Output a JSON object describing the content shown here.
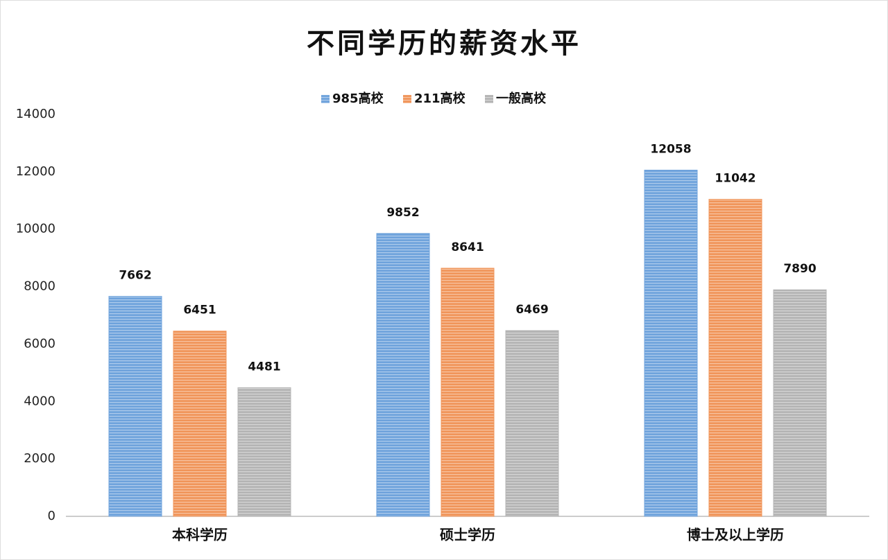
{
  "chart_data": {
    "type": "bar",
    "title": "不同学历的薪资水平",
    "categories": [
      "本科学历",
      "硕士学历",
      "博士及以上学历"
    ],
    "series": [
      {
        "name": "985高校",
        "color": "#6fa3dc",
        "values": [
          7662,
          9852,
          12058
        ]
      },
      {
        "name": "211高校",
        "color": "#f0955a",
        "values": [
          6451,
          8641,
          11042
        ]
      },
      {
        "name": "一般高校",
        "color": "#b4b4b4",
        "values": [
          4481,
          6469,
          7890
        ]
      }
    ],
    "ylim": [
      0,
      14000
    ],
    "yticks": [
      0,
      2000,
      4000,
      6000,
      8000,
      10000,
      12000,
      14000
    ],
    "grid": false,
    "legend": "top"
  }
}
